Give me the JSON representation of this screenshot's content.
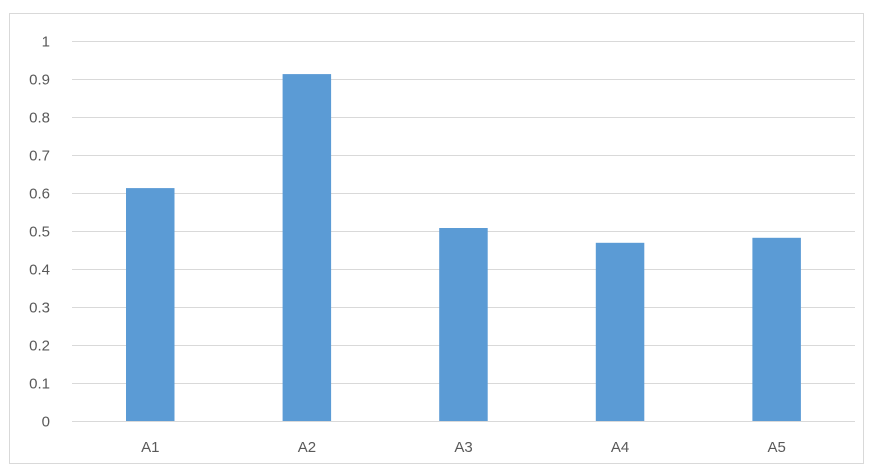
{
  "chart_data": {
    "type": "bar",
    "categories": [
      "A1",
      "A2",
      "A3",
      "A4",
      "A5"
    ],
    "values": [
      0.613,
      0.913,
      0.508,
      0.469,
      0.482
    ],
    "ylim": [
      0,
      1
    ],
    "yticks": [
      0,
      0.1,
      0.2,
      0.3,
      0.4,
      0.5,
      0.6,
      0.7,
      0.8,
      0.9,
      1
    ],
    "ytick_labels": [
      "0",
      "0.1",
      "0.2",
      "0.3",
      "0.4",
      "0.5",
      "0.6",
      "0.7",
      "0.8",
      "0.9",
      "1"
    ],
    "grid": true,
    "legend": "none",
    "colors": {
      "bar": "#5b9bd5",
      "grid": "#d9d9d9",
      "text": "#595959"
    }
  }
}
